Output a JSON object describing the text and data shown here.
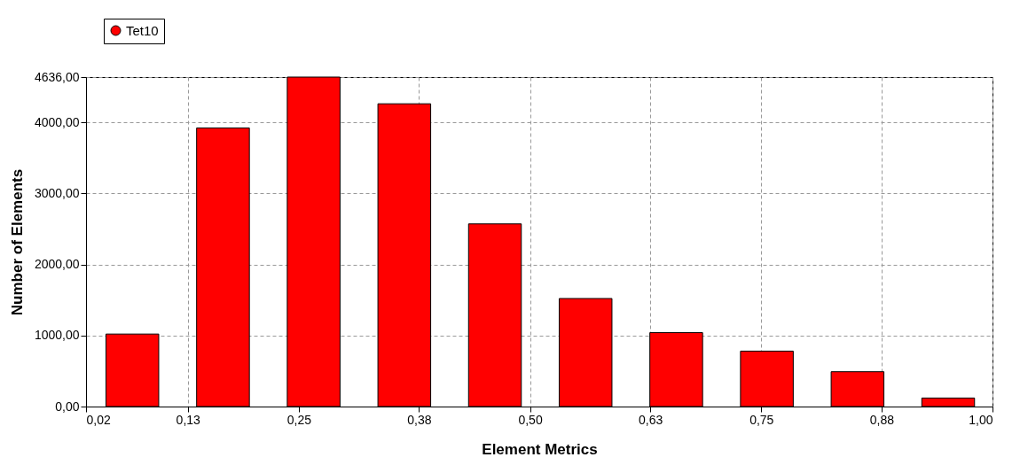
{
  "chart_data": {
    "type": "histogram",
    "xlabel": "Element Metrics",
    "ylabel": "Number of Elements",
    "bins": [
      0.02,
      0.118,
      0.216,
      0.314,
      0.412,
      0.51,
      0.608,
      0.706,
      0.804,
      0.902,
      1.0
    ],
    "series": [
      {
        "name": "Tet10",
        "color": "#ff0000",
        "values": [
          1020,
          3920,
          4636,
          4260,
          2570,
          1520,
          1040,
          780,
          490,
          120
        ]
      }
    ],
    "xlim": [
      0.02,
      1.0
    ],
    "xticks": [
      {
        "value": 0.02,
        "label": "0,02"
      },
      {
        "value": 0.13,
        "label": "0,13"
      },
      {
        "value": 0.25,
        "label": "0,25"
      },
      {
        "value": 0.38,
        "label": "0,38"
      },
      {
        "value": 0.5,
        "label": "0,50"
      },
      {
        "value": 0.63,
        "label": "0,63"
      },
      {
        "value": 0.75,
        "label": "0,75"
      },
      {
        "value": 0.88,
        "label": "0,88"
      },
      {
        "value": 1.0,
        "label": "1,00"
      }
    ],
    "ylim": [
      0,
      4636
    ],
    "yticks": [
      {
        "value": 0,
        "label": "0,00"
      },
      {
        "value": 1000,
        "label": "1000,00"
      },
      {
        "value": 2000,
        "label": "2000,00"
      },
      {
        "value": 3000,
        "label": "3000,00"
      },
      {
        "value": 4000,
        "label": "4000,00"
      },
      {
        "value": 4636,
        "label": "4636,00"
      }
    ],
    "grid": true,
    "legend": "top left",
    "line_style": "dashed"
  }
}
